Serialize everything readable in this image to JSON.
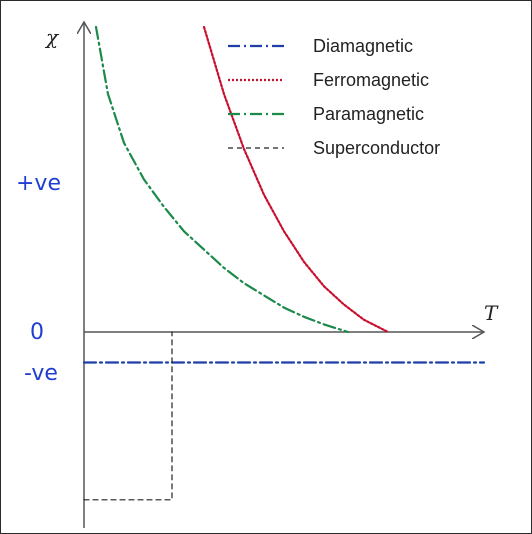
{
  "chart_data": {
    "type": "line",
    "xlabel": "T",
    "ylabel": "χ",
    "y_tick_labels": {
      "positive": "+ve",
      "zero": "0",
      "negative": "-ve"
    },
    "legend_position": "top-right",
    "grid": false,
    "series": [
      {
        "name": "Diamagnetic",
        "color": "#1f3fa8",
        "style": "dash-dot",
        "points": [
          [
            0,
            -0.1
          ],
          [
            1.0,
            -0.1
          ]
        ]
      },
      {
        "name": "Ferromagnetic",
        "color": "#c8102e",
        "style": "dotted",
        "points": [
          [
            0.3,
            1.0
          ],
          [
            0.35,
            0.78
          ],
          [
            0.4,
            0.6
          ],
          [
            0.45,
            0.45
          ],
          [
            0.5,
            0.33
          ],
          [
            0.55,
            0.23
          ],
          [
            0.6,
            0.15
          ],
          [
            0.65,
            0.09
          ],
          [
            0.7,
            0.04
          ],
          [
            0.76,
            0.0
          ]
        ]
      },
      {
        "name": "Paramagnetic",
        "color": "#1b8a4a",
        "style": "dash-dot",
        "points": [
          [
            0.03,
            1.0
          ],
          [
            0.06,
            0.78
          ],
          [
            0.1,
            0.62
          ],
          [
            0.15,
            0.5
          ],
          [
            0.2,
            0.41
          ],
          [
            0.25,
            0.33
          ],
          [
            0.3,
            0.27
          ],
          [
            0.35,
            0.21
          ],
          [
            0.4,
            0.16
          ],
          [
            0.45,
            0.12
          ],
          [
            0.5,
            0.08
          ],
          [
            0.55,
            0.05
          ],
          [
            0.6,
            0.025
          ],
          [
            0.66,
            0.0
          ]
        ]
      },
      {
        "name": "Superconductor",
        "color": "#222222",
        "style": "dashed",
        "points": [
          [
            0,
            -0.55
          ],
          [
            0.22,
            -0.55
          ],
          [
            0.22,
            0.0
          ]
        ]
      }
    ]
  }
}
